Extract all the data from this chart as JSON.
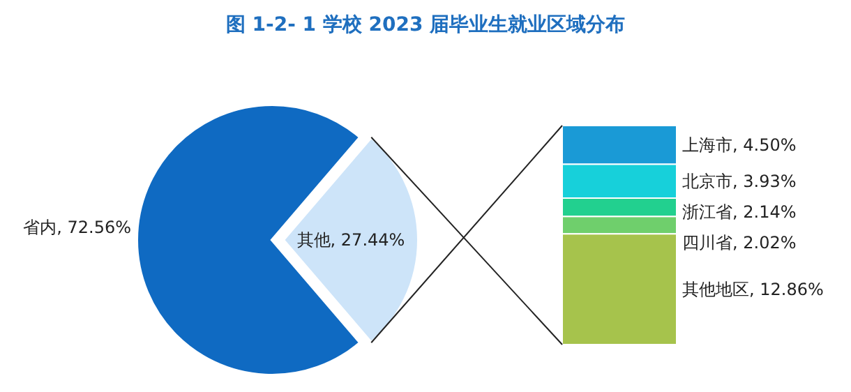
{
  "chart_data": [
    {
      "type": "pie",
      "title": "图 1-2- 1  学校 2023 届毕业生就业区域分布",
      "categories": [
        "省内",
        "其他"
      ],
      "values": [
        72.56,
        27.44
      ],
      "colors": [
        "#0f6ac2",
        "#cde4f9"
      ],
      "value_labels": [
        "72.56%",
        "27.44%"
      ]
    },
    {
      "type": "other",
      "values": [
        4.5,
        3.93,
        2.14,
        2.02,
        12.86
      ],
      "value_labels": [
        "上海市, 4.50%",
        "北京市, 3.93%",
        "浙江省, 2.14%",
        "四川省, 2.02%",
        "其他地区, 12.86%"
      ],
      "colors": [
        "#1a9ad6",
        "#17d0da",
        "#22d08f",
        "#6fcf6c",
        "#a6c34c"
      ]
    }
  ]
}
